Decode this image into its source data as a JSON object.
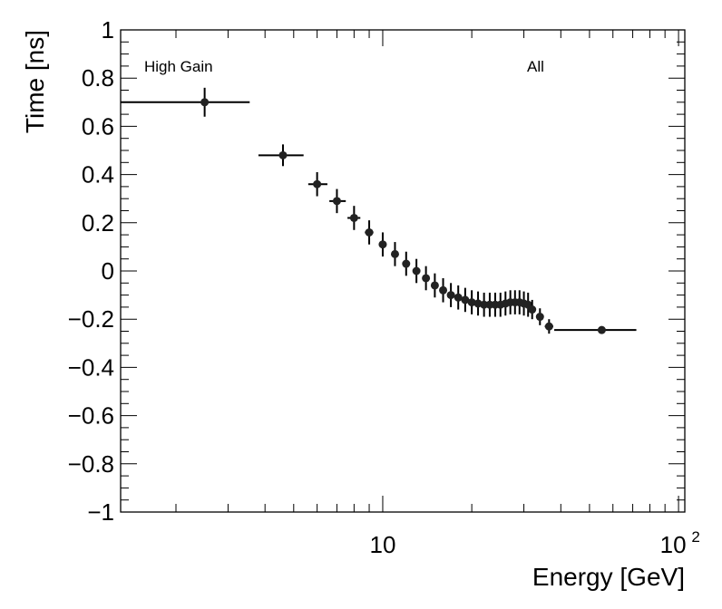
{
  "chart_data": {
    "type": "scatter",
    "title": "",
    "xlabel": "Energy [GeV]",
    "ylabel": "Time [ns]",
    "xscale": "log",
    "xlim": [
      1.3,
      105
    ],
    "ylim": [
      -1,
      1
    ],
    "xticks": [
      {
        "value": 10,
        "label": "10",
        "sup": ""
      },
      {
        "value": 100,
        "label": "10",
        "sup": "2"
      }
    ],
    "yticks": [
      {
        "value": 1,
        "label": "1"
      },
      {
        "value": 0.8,
        "label": "0.8"
      },
      {
        "value": 0.6,
        "label": "0.6"
      },
      {
        "value": 0.4,
        "label": "0.4"
      },
      {
        "value": 0.2,
        "label": "0.2"
      },
      {
        "value": 0,
        "label": "0"
      },
      {
        "value": -0.2,
        "label": "−0.2"
      },
      {
        "value": -0.4,
        "label": "−0.4"
      },
      {
        "value": -0.6,
        "label": "−0.6"
      },
      {
        "value": -0.8,
        "label": "−0.8"
      },
      {
        "value": -1,
        "label": "−1"
      }
    ],
    "annotations": [
      "High Gain",
      "All"
    ],
    "series": [
      {
        "name": "High Gain / All",
        "points": [
          {
            "x": 2.5,
            "xlo": 1.3,
            "xhi": 3.55,
            "y": 0.7,
            "yerr": 0.06
          },
          {
            "x": 4.6,
            "xlo": 3.8,
            "xhi": 5.4,
            "y": 0.48,
            "yerr": 0.045
          },
          {
            "x": 6.0,
            "xlo": 5.6,
            "xhi": 6.5,
            "y": 0.36,
            "yerr": 0.05
          },
          {
            "x": 7.0,
            "xlo": 6.6,
            "xhi": 7.5,
            "y": 0.29,
            "yerr": 0.05
          },
          {
            "x": 8.0,
            "xlo": 7.6,
            "xhi": 8.4,
            "y": 0.22,
            "yerr": 0.05
          },
          {
            "x": 9.0,
            "xlo": 8.7,
            "xhi": 9.3,
            "y": 0.16,
            "yerr": 0.05
          },
          {
            "x": 10.0,
            "xlo": 9.7,
            "xhi": 10.3,
            "y": 0.11,
            "yerr": 0.05
          },
          {
            "x": 11.0,
            "xlo": 10.7,
            "xhi": 11.3,
            "y": 0.07,
            "yerr": 0.05
          },
          {
            "x": 12.0,
            "xlo": 11.7,
            "xhi": 12.3,
            "y": 0.03,
            "yerr": 0.05
          },
          {
            "x": 13.0,
            "xlo": 12.7,
            "xhi": 13.3,
            "y": 0.0,
            "yerr": 0.05
          },
          {
            "x": 14.0,
            "xlo": 13.7,
            "xhi": 14.3,
            "y": -0.03,
            "yerr": 0.05
          },
          {
            "x": 15.0,
            "xlo": 14.7,
            "xhi": 15.3,
            "y": -0.06,
            "yerr": 0.05
          },
          {
            "x": 16.0,
            "xlo": 15.7,
            "xhi": 16.3,
            "y": -0.08,
            "yerr": 0.05
          },
          {
            "x": 17.0,
            "xlo": 16.7,
            "xhi": 17.3,
            "y": -0.1,
            "yerr": 0.05
          },
          {
            "x": 18.0,
            "xlo": 17.7,
            "xhi": 18.3,
            "y": -0.11,
            "yerr": 0.05
          },
          {
            "x": 19.0,
            "xlo": 18.7,
            "xhi": 19.3,
            "y": -0.12,
            "yerr": 0.05
          },
          {
            "x": 20.0,
            "xlo": 19.7,
            "xhi": 20.3,
            "y": -0.13,
            "yerr": 0.05
          },
          {
            "x": 21.0,
            "xlo": 20.7,
            "xhi": 21.3,
            "y": -0.135,
            "yerr": 0.05
          },
          {
            "x": 22.0,
            "xlo": 21.7,
            "xhi": 22.3,
            "y": -0.14,
            "yerr": 0.05
          },
          {
            "x": 23.0,
            "xlo": 22.7,
            "xhi": 23.3,
            "y": -0.14,
            "yerr": 0.05
          },
          {
            "x": 24.0,
            "xlo": 23.7,
            "xhi": 24.3,
            "y": -0.14,
            "yerr": 0.05
          },
          {
            "x": 25.0,
            "xlo": 24.7,
            "xhi": 25.3,
            "y": -0.14,
            "yerr": 0.05
          },
          {
            "x": 26.0,
            "xlo": 25.7,
            "xhi": 26.3,
            "y": -0.135,
            "yerr": 0.05
          },
          {
            "x": 27.0,
            "xlo": 26.7,
            "xhi": 27.3,
            "y": -0.13,
            "yerr": 0.05
          },
          {
            "x": 28.0,
            "xlo": 27.7,
            "xhi": 28.3,
            "y": -0.13,
            "yerr": 0.05
          },
          {
            "x": 29.0,
            "xlo": 28.7,
            "xhi": 29.3,
            "y": -0.13,
            "yerr": 0.05
          },
          {
            "x": 30.0,
            "xlo": 29.7,
            "xhi": 30.3,
            "y": -0.135,
            "yerr": 0.05
          },
          {
            "x": 31.0,
            "xlo": 30.7,
            "xhi": 31.3,
            "y": -0.14,
            "yerr": 0.05
          },
          {
            "x": 32.0,
            "xlo": 31.7,
            "xhi": 32.3,
            "y": -0.16,
            "yerr": 0.04
          },
          {
            "x": 34.0,
            "xlo": 33.4,
            "xhi": 34.6,
            "y": -0.19,
            "yerr": 0.035
          },
          {
            "x": 36.5,
            "xlo": 35.3,
            "xhi": 37.7,
            "y": -0.23,
            "yerr": 0.03
          },
          {
            "x": 55.0,
            "xlo": 38.0,
            "xhi": 72.0,
            "y": -0.245,
            "yerr": 0.01
          }
        ]
      }
    ]
  }
}
